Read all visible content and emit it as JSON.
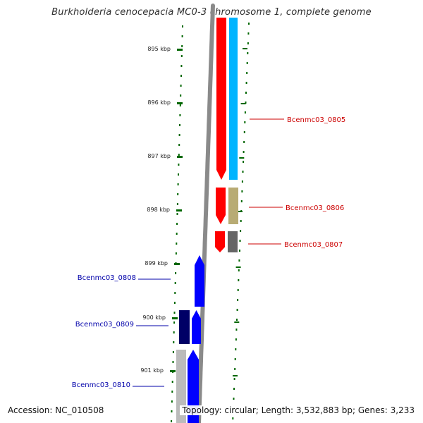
{
  "title": "Burkholderia cenocepacia MC0-3 chromosome 1, complete genome",
  "footer": {
    "accession": "Accession: NC_010508",
    "summary": "Topology: circular; Length: 3,532,883 bp; Genes: 3,233"
  },
  "ruler": {
    "ticks": [
      {
        "label": "895 kbp"
      },
      {
        "label": "896 kbp"
      },
      {
        "label": "897 kbp"
      },
      {
        "label": "898 kbp"
      },
      {
        "label": "899 kbp"
      },
      {
        "label": "900 kbp"
      },
      {
        "label": "901 kbp"
      }
    ]
  },
  "genes": [
    {
      "label": "Bcenmc03_0805",
      "strand": "forward",
      "color": "#ff0000",
      "function_color": "#00b4ff"
    },
    {
      "label": "Bcenmc03_0806",
      "strand": "forward",
      "color": "#ff0000",
      "function_color": "#b8ab74"
    },
    {
      "label": "Bcenmc03_0807",
      "strand": "forward",
      "color": "#ff0000",
      "function_color": "#666666"
    },
    {
      "label": "Bcenmc03_0808",
      "strand": "reverse",
      "color": "#0000ff"
    },
    {
      "label": "Bcenmc03_0809",
      "strand": "reverse",
      "color": "#0000ff",
      "function_color": "#000066"
    },
    {
      "label": "Bcenmc03_0810",
      "strand": "reverse",
      "color": "#0000ff",
      "function_color": "#bbbbbb"
    }
  ],
  "colors": {
    "backbone": "#8a8a8a",
    "tick": "#006600",
    "forward_label": "#cc0000",
    "reverse_label": "#0000aa"
  }
}
